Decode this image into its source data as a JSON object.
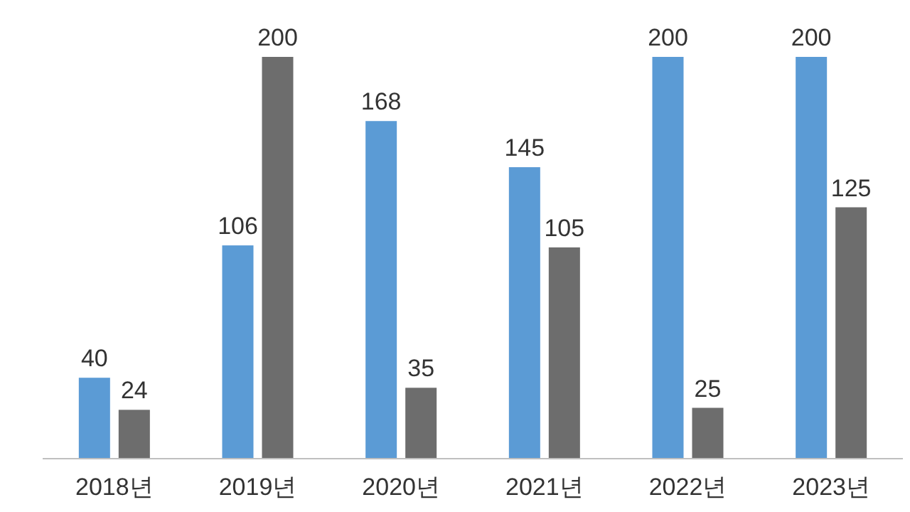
{
  "chart_data": {
    "type": "bar",
    "categories": [
      "2018년",
      "2019년",
      "2020년",
      "2021년",
      "2022년",
      "2023년"
    ],
    "series": [
      {
        "color": "#5b9bd5",
        "values": [
          40,
          106,
          168,
          145,
          200,
          200
        ]
      },
      {
        "color": "#6d6d6d",
        "values": [
          24,
          200,
          35,
          105,
          25,
          125
        ]
      }
    ],
    "data_labels": true
  }
}
